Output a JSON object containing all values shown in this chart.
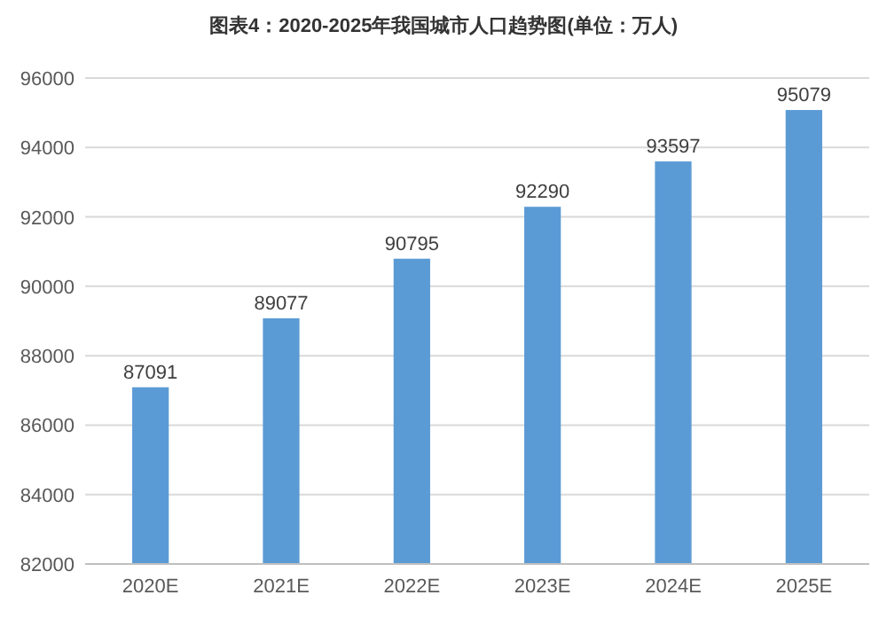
{
  "chart_data": {
    "type": "bar",
    "title": "图表4：2020-2025年我国城市人口趋势图(单位：万人)",
    "categories": [
      "2020E",
      "2021E",
      "2022E",
      "2023E",
      "2024E",
      "2025E"
    ],
    "values": [
      87091,
      89077,
      90795,
      92290,
      93597,
      95079
    ],
    "color": "#5b9bd5",
    "ylim": [
      82000,
      96000
    ],
    "yticks": [
      82000,
      84000,
      86000,
      88000,
      90000,
      92000,
      94000,
      96000
    ],
    "grid": "y",
    "data_labels": true
  }
}
